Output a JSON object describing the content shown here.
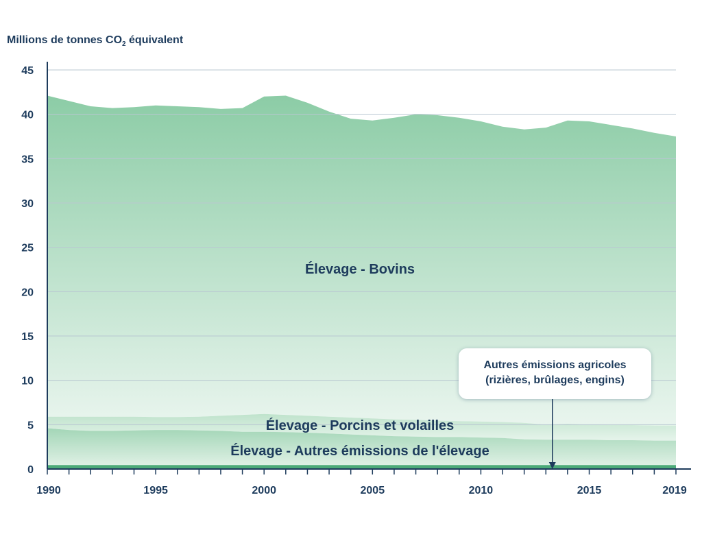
{
  "chart_data": {
    "type": "area",
    "ylabel_prefix": "Millions de tonnes CO",
    "ylabel_sub": "2",
    "ylabel_suffix": " équivalent",
    "x_ticks": [
      "1990",
      "1995",
      "2000",
      "2005",
      "2010",
      "2015",
      "2019"
    ],
    "x_tick_years": [
      1990,
      1995,
      2000,
      2005,
      2010,
      2015,
      2019
    ],
    "y_ticks": [
      "0",
      "5",
      "10",
      "15",
      "20",
      "25",
      "30",
      "35",
      "40",
      "45"
    ],
    "ylim": [
      0,
      45
    ],
    "xlim": [
      1990,
      2019
    ],
    "grid": true,
    "years": [
      1990,
      1991,
      1992,
      1993,
      1994,
      1995,
      1996,
      1997,
      1998,
      1999,
      2000,
      2001,
      2002,
      2003,
      2004,
      2005,
      2006,
      2007,
      2008,
      2009,
      2010,
      2011,
      2012,
      2013,
      2014,
      2015,
      2016,
      2017,
      2018,
      2019
    ],
    "series": [
      {
        "name": "Autres émissions agricoles (rizières, brûlages, engins)",
        "values": [
          0.45,
          0.45,
          0.45,
          0.45,
          0.45,
          0.45,
          0.45,
          0.45,
          0.45,
          0.45,
          0.45,
          0.45,
          0.45,
          0.45,
          0.45,
          0.45,
          0.45,
          0.45,
          0.45,
          0.45,
          0.45,
          0.45,
          0.45,
          0.45,
          0.45,
          0.45,
          0.45,
          0.45,
          0.45,
          0.45
        ]
      },
      {
        "name": "Élevage - Autres émissions de l'élevage",
        "values": [
          4.6,
          4.4,
          4.3,
          4.3,
          4.35,
          4.4,
          4.4,
          4.35,
          4.3,
          4.2,
          4.2,
          4.15,
          4.1,
          4.0,
          3.9,
          3.8,
          3.7,
          3.65,
          3.6,
          3.6,
          3.55,
          3.5,
          3.35,
          3.3,
          3.3,
          3.3,
          3.25,
          3.25,
          3.2,
          3.2
        ]
      },
      {
        "name": "Élevage - Porcins et volailles",
        "values": [
          5.9,
          5.9,
          5.9,
          5.9,
          5.9,
          5.85,
          5.85,
          5.9,
          6.0,
          6.1,
          6.2,
          6.1,
          6.0,
          5.9,
          5.8,
          5.7,
          5.6,
          5.55,
          5.45,
          5.4,
          5.35,
          5.3,
          5.2,
          5.0,
          5.1,
          5.0,
          4.95,
          4.95,
          4.9,
          4.9
        ]
      },
      {
        "name": "Élevage - Bovins",
        "values": [
          42.1,
          41.5,
          40.9,
          40.7,
          40.8,
          41.0,
          40.9,
          40.8,
          40.6,
          40.7,
          42.0,
          42.1,
          41.3,
          40.3,
          39.5,
          39.3,
          39.6,
          40.0,
          39.9,
          39.6,
          39.2,
          38.6,
          38.3,
          38.5,
          39.3,
          39.2,
          38.8,
          38.4,
          37.9,
          37.5
        ]
      }
    ],
    "labels": {
      "bovins": "Élevage - Bovins",
      "porcins": "Élevage - Porcins et volailles",
      "autres_elevage": "Élevage - Autres émissions de l'élevage",
      "callout_line1": "Autres émissions agricoles",
      "callout_line2": "(rizières, brûlages, engins)"
    },
    "callout_points_to_year": 2013.3,
    "colors": {
      "bovins_top": "#8ccca6",
      "bovins_bottom": "#e9f5ee",
      "porcins_top": "#bfe3cc",
      "porcins_bottom": "#e6f4eb",
      "autres_top": "#a3d6b7",
      "autres_bottom": "#def0e4",
      "base_band": "#4caa78",
      "axis": "#1d3b5c",
      "grid": "#b9c7d1"
    }
  }
}
